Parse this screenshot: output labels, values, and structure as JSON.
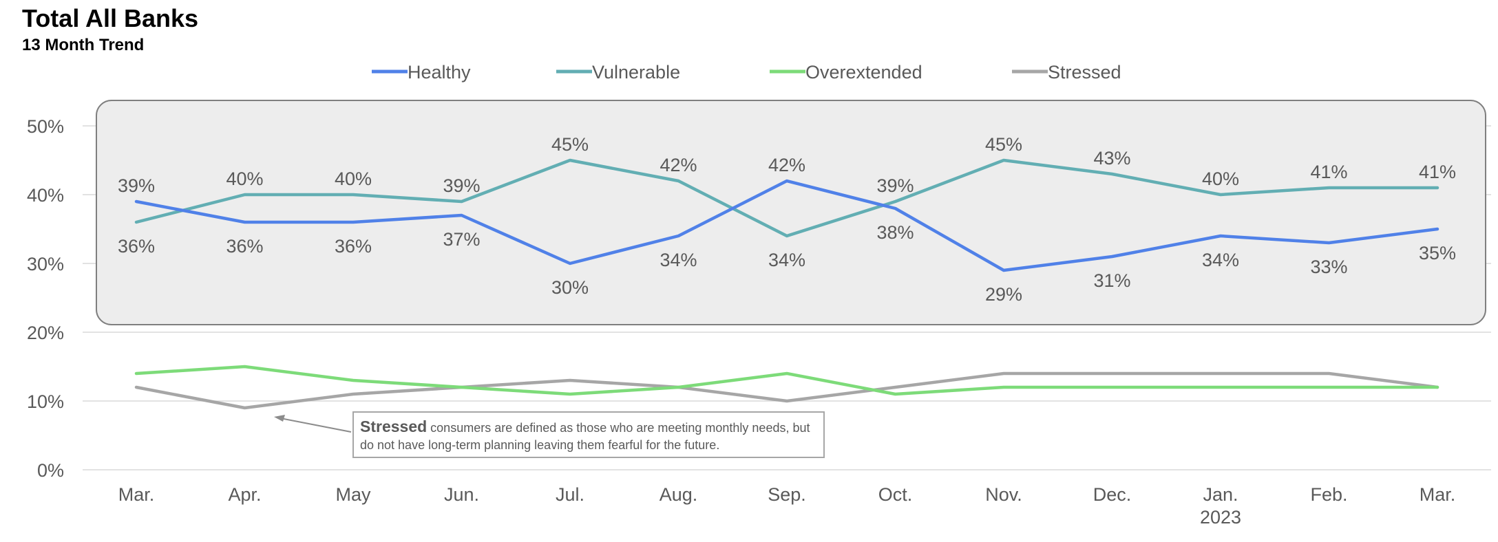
{
  "title": "Total All Banks",
  "subtitle": "13 Month Trend",
  "annotation": {
    "bold": "Stressed",
    "text": " consumers are defined as those who are meeting monthly needs, but do not have long-term planning leaving them fearful for the future."
  },
  "chart_data": {
    "type": "line",
    "categories": [
      "Mar.",
      "Apr.",
      "May",
      "Jun.",
      "Jul.",
      "Aug.",
      "Sep.",
      "Oct.",
      "Nov.",
      "Dec.",
      "Jan.",
      "Feb.",
      "Mar."
    ],
    "category_sublabels": [
      "",
      "",
      "",
      "",
      "",
      "",
      "",
      "",
      "",
      "",
      "2023",
      "",
      ""
    ],
    "ylim": [
      0,
      50
    ],
    "yticks": [
      0,
      10,
      20,
      30,
      40,
      50
    ],
    "ytick_labels": [
      "0%",
      "10%",
      "20%",
      "30%",
      "40%",
      "50%"
    ],
    "grid": true,
    "legend_position": "top",
    "series": [
      {
        "name": "Healthy",
        "color": "#5081E8",
        "values": [
          39,
          36,
          36,
          37,
          30,
          34,
          42,
          38,
          29,
          31,
          34,
          33,
          35
        ],
        "labeled": true
      },
      {
        "name": "Vulnerable",
        "color": "#62AEB3",
        "values": [
          36,
          40,
          40,
          39,
          45,
          42,
          34,
          39,
          45,
          43,
          40,
          41,
          41
        ],
        "labeled": true
      },
      {
        "name": "Overextended",
        "color": "#7DDB79",
        "values": [
          14,
          15,
          13,
          12,
          11,
          12,
          14,
          11,
          12,
          12,
          12,
          12,
          12
        ],
        "labeled": false
      },
      {
        "name": "Stressed",
        "color": "#A6A6A6",
        "values": [
          12,
          9,
          11,
          12,
          13,
          12,
          10,
          12,
          14,
          14,
          14,
          14,
          12
        ],
        "labeled": false
      }
    ],
    "data_labels": {
      "values": [
        39,
        40,
        40,
        39,
        45,
        42,
        42,
        39,
        45,
        43,
        40,
        41,
        41,
        36,
        36,
        36,
        37,
        30,
        34,
        34,
        38,
        29,
        31,
        34,
        33,
        35
      ],
      "text": [
        "39%",
        "40%",
        "40%",
        "39%",
        "45%",
        "42%",
        "42%",
        "39%",
        "45%",
        "43%",
        "40%",
        "41%",
        "41%",
        "36%",
        "36%",
        "36%",
        "37%",
        "30%",
        "34%",
        "34%",
        "38%",
        "29%",
        "31%",
        "34%",
        "33%",
        "35%"
      ],
      "index": [
        0,
        1,
        2,
        3,
        4,
        5,
        6,
        7,
        8,
        9,
        10,
        11,
        12,
        0,
        1,
        2,
        3,
        4,
        5,
        6,
        7,
        8,
        9,
        10,
        11,
        12
      ],
      "placement": [
        "above",
        "above",
        "above",
        "above",
        "above",
        "above",
        "above",
        "above",
        "above",
        "above",
        "above",
        "above",
        "above",
        "below",
        "below",
        "below",
        "below",
        "below",
        "below",
        "below",
        "below",
        "below",
        "below",
        "below",
        "below",
        "below"
      ]
    }
  }
}
